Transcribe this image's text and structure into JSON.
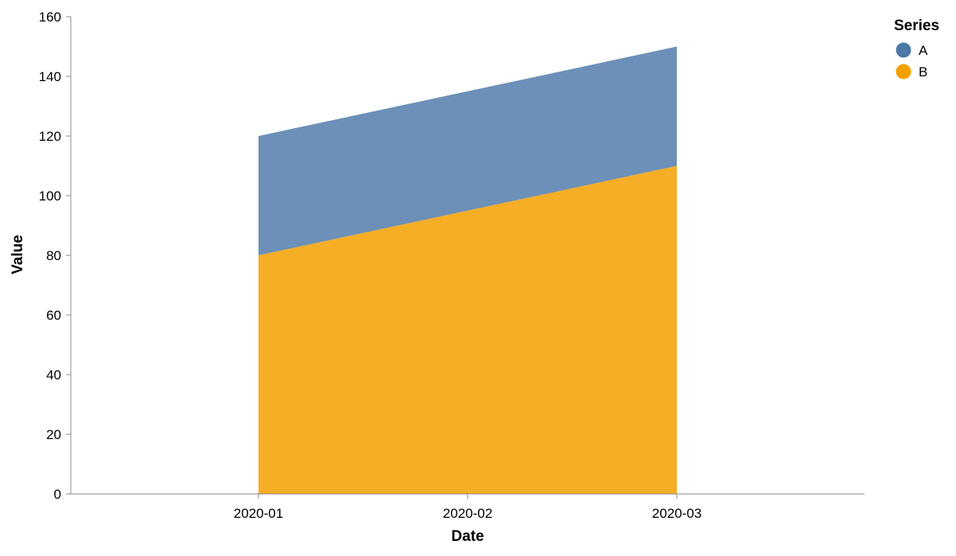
{
  "chart_data": {
    "type": "area",
    "stacked": true,
    "x": [
      "2020-01",
      "2020-02",
      "2020-03"
    ],
    "series": [
      {
        "name": "A",
        "values": [
          40,
          40,
          40
        ],
        "color": "#4c78a8"
      },
      {
        "name": "B",
        "values": [
          80,
          95,
          110
        ],
        "color": "#f5a000"
      }
    ],
    "xlabel": "Date",
    "ylabel": "Value",
    "ylim": [
      0,
      160
    ],
    "yticks": [
      0,
      20,
      40,
      60,
      80,
      100,
      120,
      140,
      160
    ],
    "xticks": [
      "2020-01",
      "2020-02",
      "2020-03"
    ],
    "legend": {
      "title": "Series",
      "position": "top-right"
    },
    "grid": false
  }
}
